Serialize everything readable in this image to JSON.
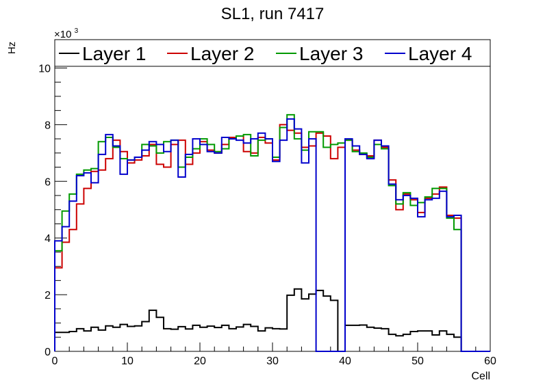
{
  "chart_data": {
    "type": "histogram-step",
    "title": "SL1, run 7417",
    "xlabel": "Cell",
    "ylabel": "Hz",
    "y_multiplier_label": "×10",
    "y_multiplier_exponent": "3",
    "xlim": [
      0,
      60
    ],
    "ylim": [
      0,
      11
    ],
    "x_ticks": [
      0,
      10,
      20,
      30,
      40,
      50,
      60
    ],
    "y_ticks": [
      0,
      2,
      4,
      6,
      8,
      10
    ],
    "bin_edges_start": 0,
    "bin_width": 1,
    "legend_position": "top",
    "grid": false,
    "series": [
      {
        "name": "Layer 1",
        "color": "#000000",
        "values": [
          0.67,
          0.67,
          0.7,
          0.8,
          0.72,
          0.85,
          0.75,
          0.9,
          0.85,
          0.95,
          0.88,
          0.9,
          1.05,
          1.45,
          1.2,
          0.8,
          0.78,
          0.87,
          0.79,
          0.92,
          0.85,
          0.89,
          0.84,
          0.92,
          0.8,
          0.86,
          0.95,
          0.88,
          0.72,
          0.83,
          0.8,
          0.79,
          1.98,
          2.2,
          1.85,
          2.02,
          2.15,
          1.95,
          1.8,
          0.0,
          0.92,
          0.92,
          0.93,
          0.85,
          0.82,
          0.8,
          0.6,
          0.55,
          0.6,
          0.7,
          0.72,
          0.72,
          0.58,
          0.72,
          0.6,
          0.5,
          0,
          0,
          0,
          0
        ]
      },
      {
        "name": "Layer 2",
        "color": "#cc0000",
        "values": [
          2.95,
          3.85,
          4.3,
          5.2,
          5.75,
          6.35,
          6.4,
          6.8,
          7.45,
          7.05,
          6.65,
          6.75,
          6.9,
          7.3,
          6.6,
          6.5,
          7.3,
          7.45,
          6.6,
          7.0,
          7.4,
          7.1,
          7.0,
          7.3,
          7.55,
          7.6,
          7.05,
          7.0,
          7.55,
          7.35,
          6.75,
          8.0,
          7.8,
          7.7,
          7.2,
          7.25,
          7.7,
          7.6,
          6.8,
          7.2,
          7.45,
          7.1,
          6.95,
          6.9,
          7.45,
          7.2,
          6.05,
          5.0,
          5.55,
          5.35,
          4.9,
          5.4,
          5.55,
          5.8,
          4.8,
          4.7,
          0,
          0,
          0,
          0
        ]
      },
      {
        "name": "Layer 3",
        "color": "#009900",
        "values": [
          3.55,
          4.95,
          5.55,
          6.25,
          6.4,
          6.45,
          7.4,
          7.55,
          7.2,
          6.8,
          6.75,
          6.85,
          7.3,
          7.25,
          7.0,
          7.4,
          7.45,
          6.5,
          6.85,
          7.15,
          7.5,
          7.3,
          7.05,
          7.15,
          7.5,
          7.6,
          7.65,
          6.9,
          7.45,
          7.5,
          6.85,
          7.9,
          8.35,
          7.5,
          7.1,
          7.75,
          7.75,
          7.2,
          7.3,
          7.35,
          7.45,
          7.05,
          7.0,
          6.85,
          7.3,
          7.15,
          5.85,
          5.2,
          5.6,
          5.15,
          5.25,
          5.45,
          5.75,
          5.75,
          4.7,
          4.3,
          0,
          0,
          0,
          0
        ]
      },
      {
        "name": "Layer 4",
        "color": "#0000cc",
        "values": [
          3.9,
          4.4,
          5.3,
          6.2,
          6.3,
          5.95,
          6.95,
          7.65,
          7.25,
          6.25,
          6.75,
          6.85,
          7.1,
          7.4,
          7.3,
          7.05,
          7.45,
          6.15,
          6.95,
          7.5,
          7.3,
          7.05,
          7.0,
          7.55,
          7.5,
          7.45,
          7.35,
          7.5,
          7.7,
          7.5,
          6.7,
          7.45,
          8.2,
          7.85,
          6.65,
          7.5,
          0,
          0,
          0,
          0,
          7.5,
          7.25,
          6.95,
          6.8,
          7.45,
          7.25,
          5.9,
          5.35,
          5.5,
          5.4,
          4.75,
          5.35,
          5.4,
          5.65,
          4.75,
          4.8,
          0,
          0,
          0,
          0
        ]
      }
    ]
  }
}
